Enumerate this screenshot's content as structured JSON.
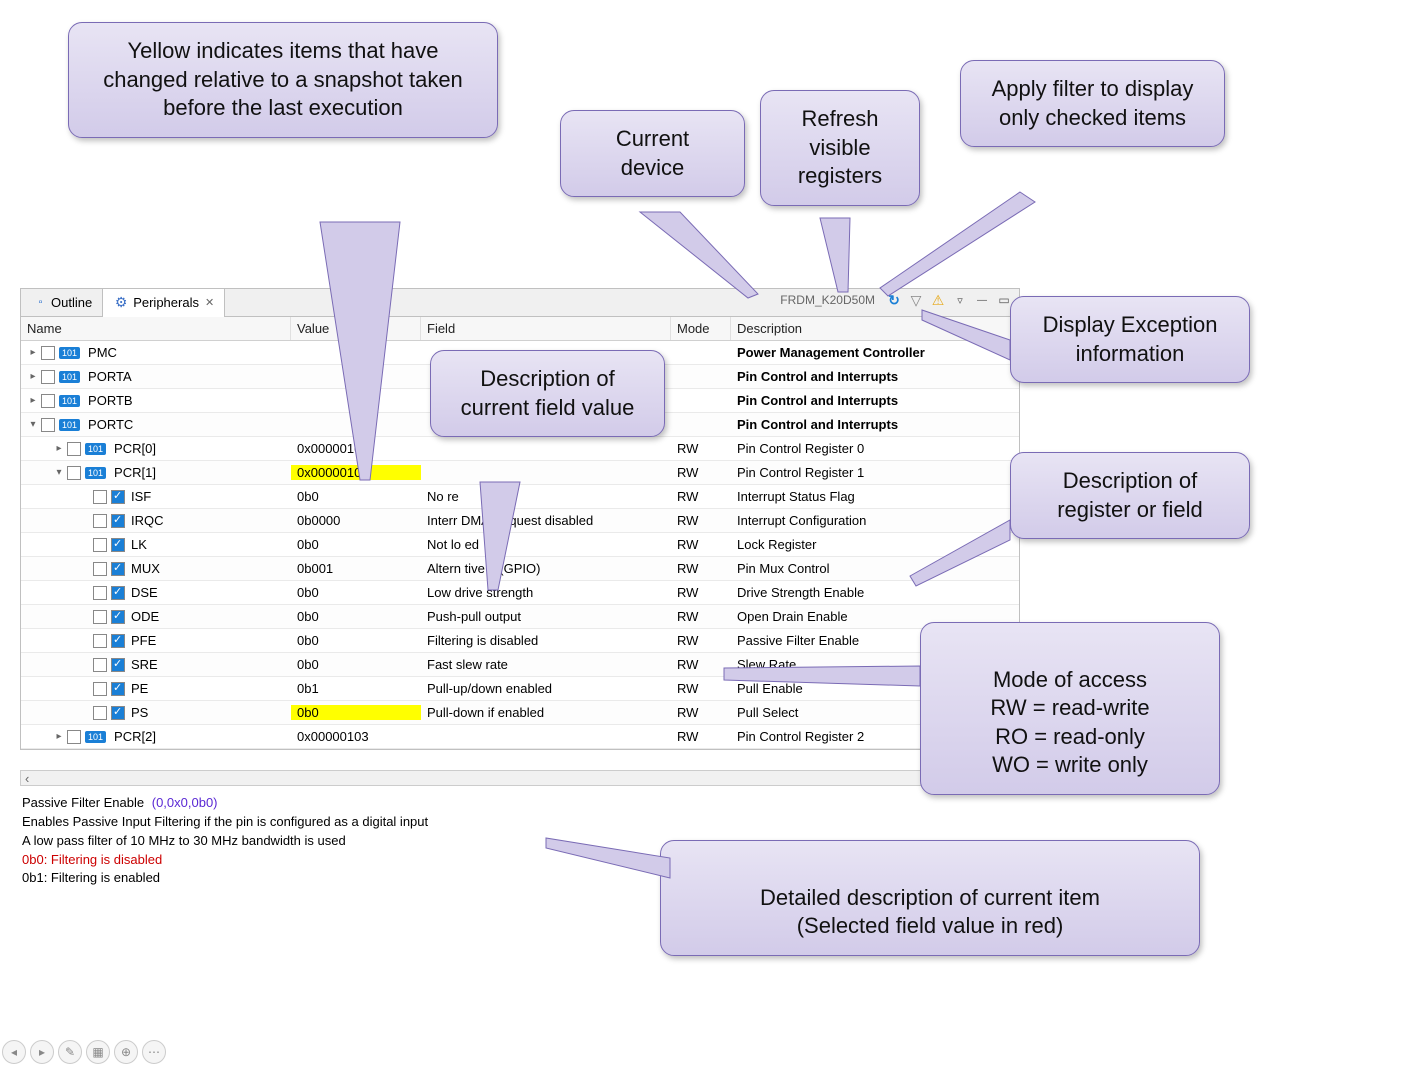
{
  "tabs": {
    "outline": "Outline",
    "peripherals": "Peripherals"
  },
  "device": "FRDM_K20D50M",
  "columns": {
    "name": "Name",
    "value": "Value",
    "field": "Field",
    "mode": "Mode",
    "desc": "Description"
  },
  "rows": [
    {
      "indent": 0,
      "exp": "▸",
      "chk": false,
      "chip": "101",
      "name": "PMC",
      "value": "",
      "field": "",
      "mode": "",
      "desc": "Power Management Controller",
      "bold": true
    },
    {
      "indent": 0,
      "exp": "▸",
      "chk": false,
      "chip": "101",
      "name": "PORTA",
      "value": "",
      "field": "",
      "mode": "",
      "desc": "Pin Control and Interrupts",
      "bold": true
    },
    {
      "indent": 0,
      "exp": "▸",
      "chk": false,
      "chip": "101",
      "name": "PORTB",
      "value": "",
      "field": "",
      "mode": "",
      "desc": "Pin Control and Interrupts",
      "bold": true
    },
    {
      "indent": 0,
      "exp": "▾",
      "chk": false,
      "chip": "101",
      "name": "PORTC",
      "value": "",
      "field": "",
      "mode": "",
      "desc": "Pin Control and Interrupts",
      "bold": true
    },
    {
      "indent": 1,
      "exp": "▸",
      "chk": false,
      "chip": "101",
      "name": "PCR[0]",
      "value": "0x00000103",
      "field": "",
      "mode": "RW",
      "desc": "Pin Control Register 0"
    },
    {
      "indent": 1,
      "exp": "▾",
      "chk": false,
      "chip": "101",
      "name": "PCR[1]",
      "value": "0x00000102",
      "field": "",
      "mode": "RW",
      "desc": "Pin Control Register 1",
      "hlValue": true
    },
    {
      "indent": 2,
      "exp": "",
      "chk": false,
      "chk2": true,
      "name": "ISF",
      "value": "0b0",
      "field": "No re",
      "mode": "RW",
      "desc": "Interrupt Status Flag"
    },
    {
      "indent": 2,
      "exp": "",
      "chk": false,
      "chk2": true,
      "name": "IRQC",
      "value": "0b0000",
      "field": "Interr     DMA Request disabled",
      "mode": "RW",
      "desc": "Interrupt Configuration"
    },
    {
      "indent": 2,
      "exp": "",
      "chk": false,
      "chk2": true,
      "name": "LK",
      "value": "0b0",
      "field": "Not lo   ed",
      "mode": "RW",
      "desc": "Lock Register"
    },
    {
      "indent": 2,
      "exp": "",
      "chk": false,
      "chk2": true,
      "name": "MUX",
      "value": "0b001",
      "field": "Altern  tive 1 (GPIO)",
      "mode": "RW",
      "desc": "Pin Mux Control"
    },
    {
      "indent": 2,
      "exp": "",
      "chk": false,
      "chk2": true,
      "name": "DSE",
      "value": "0b0",
      "field": "Low drive strength",
      "mode": "RW",
      "desc": "Drive Strength Enable"
    },
    {
      "indent": 2,
      "exp": "",
      "chk": false,
      "chk2": true,
      "name": "ODE",
      "value": "0b0",
      "field": "Push-pull output",
      "mode": "RW",
      "desc": "Open Drain Enable"
    },
    {
      "indent": 2,
      "exp": "",
      "chk": false,
      "chk2": true,
      "name": "PFE",
      "value": "0b0",
      "field": "Filtering is disabled",
      "mode": "RW",
      "desc": "Passive Filter Enable"
    },
    {
      "indent": 2,
      "exp": "",
      "chk": false,
      "chk2": true,
      "name": "SRE",
      "value": "0b0",
      "field": "Fast slew rate",
      "mode": "RW",
      "desc": "Slew Rate ..."
    },
    {
      "indent": 2,
      "exp": "",
      "chk": false,
      "chk2": true,
      "name": "PE",
      "value": "0b1",
      "field": "Pull-up/down enabled",
      "mode": "RW",
      "desc": "Pull Enable"
    },
    {
      "indent": 2,
      "exp": "",
      "chk": false,
      "chk2": true,
      "name": "PS",
      "value": "0b0",
      "field": "Pull-down if enabled",
      "mode": "RW",
      "desc": "Pull Select",
      "hlValue": true
    },
    {
      "indent": 1,
      "exp": "▸",
      "chk": false,
      "chip": "101",
      "name": "PCR[2]",
      "value": "0x00000103",
      "field": "",
      "mode": "RW",
      "desc": "Pin Control Register 2"
    }
  ],
  "bottom": {
    "title": "Passive Filter Enable",
    "tuple": "(0,0x0,0b0)",
    "line2": "Enables Passive Input Filtering if the pin is configured as a digital input",
    "line3": "A low pass filter of 10 MHz to 30 MHz bandwidth is used",
    "sel": "0b0: Filtering is disabled",
    "other": "0b1: Filtering is enabled"
  },
  "callouts": {
    "yellow": "Yellow indicates items that have changed relative to a snapshot taken before the last execution",
    "device": "Current device",
    "refresh": "Refresh visible registers",
    "filter": "Apply filter to display only checked items",
    "fieldDesc": "Description of current field value",
    "exception": "Display Exception information",
    "regDesc": "Description of register or field",
    "mode": "Mode of access\nRW = read-write\nRO = read-only\nWO = write only",
    "detail": "Detailed description of current item\n(Selected field value in red)"
  },
  "style": {
    "highlight": "#ffff00",
    "calloutBg": "#d2cbe9",
    "calloutBorder": "#7a6bb5",
    "linkColor": "#5a28d4",
    "redColor": "#c00",
    "chipColor": "#1a7fd6"
  }
}
